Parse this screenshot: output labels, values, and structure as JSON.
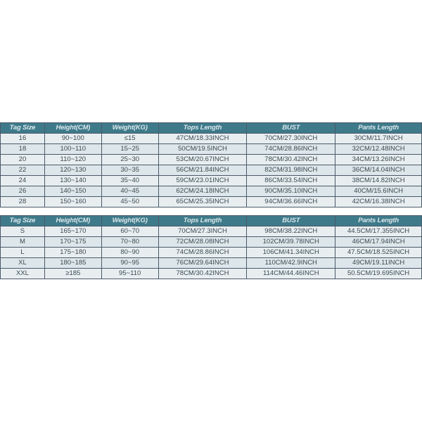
{
  "style": {
    "header_bg": "#3e7a8a",
    "header_fg": "#dce8ec",
    "row_bg_a": "#e8eef0",
    "row_bg_b": "#dde6ea",
    "cell_fg": "#3a4a52",
    "border": "#4a5a6a",
    "font_size_pt": 7,
    "font_family": "Arial",
    "col_widths_pct": [
      10.5,
      13.5,
      13.5,
      21,
      21,
      20.5
    ]
  },
  "tables": {
    "kids": {
      "columns": [
        "Tag Size",
        "Height(CM)",
        "Weight(KG)",
        "Tops Length",
        "BUST",
        "Pants Length"
      ],
      "rows": [
        [
          "16",
          "90~100",
          "≤15",
          "47CM/18.33INCH",
          "70CM/27.30INCH",
          "30CM/11.7INCH"
        ],
        [
          "18",
          "100~110",
          "15~25",
          "50CM/19.5INCH",
          "74CM/28.86INCH",
          "32CM/12.48INCH"
        ],
        [
          "20",
          "110~120",
          "25~30",
          "53CM/20.67INCH",
          "78CM/30.42INCH",
          "34CM/13.26INCH"
        ],
        [
          "22",
          "120~130",
          "30~35",
          "56CM/21.84INCH",
          "82CM/31.98INCH",
          "36CM/14.04INCH"
        ],
        [
          "24",
          "130~140",
          "35~40",
          "59CM/23.01INCH",
          "86CM/33.54INCH",
          "38CM/14.82INCH"
        ],
        [
          "26",
          "140~150",
          "40~45",
          "62CM/24.18INCH",
          "90CM/35.10INCH",
          "40CM/15.6INCH"
        ],
        [
          "28",
          "150~160",
          "45~50",
          "65CM/25.35INCH",
          "94CM/36.66INCH",
          "42CM/16.38INCH"
        ]
      ]
    },
    "adult": {
      "columns": [
        "Tag Size",
        "Height(CM)",
        "Weight(KG)",
        "Tops Length",
        "BUST",
        "Pants Length"
      ],
      "rows": [
        [
          "S",
          "165~170",
          "60~70",
          "70CM/27.3INCH",
          "98CM/38.22INCH",
          "44.5CM/17.355INCH"
        ],
        [
          "M",
          "170~175",
          "70~80",
          "72CM/28.08INCH",
          "102CM/39.78INCH",
          "46CM/17.94INCH"
        ],
        [
          "L",
          "175~180",
          "80~90",
          "74CM/28.86INCH",
          "106CM/41.34INCH",
          "47.5CM/18.525INCH"
        ],
        [
          "XL",
          "180~185",
          "90~95",
          "76CM/29.64INCH",
          "110CM/42.9INCH",
          "49CM/19.11INCH"
        ],
        [
          "XXL",
          "≥185",
          "95~110",
          "78CM/30.42INCH",
          "114CM/44.46INCH",
          "50.5CM/19.695INCH"
        ]
      ]
    }
  }
}
